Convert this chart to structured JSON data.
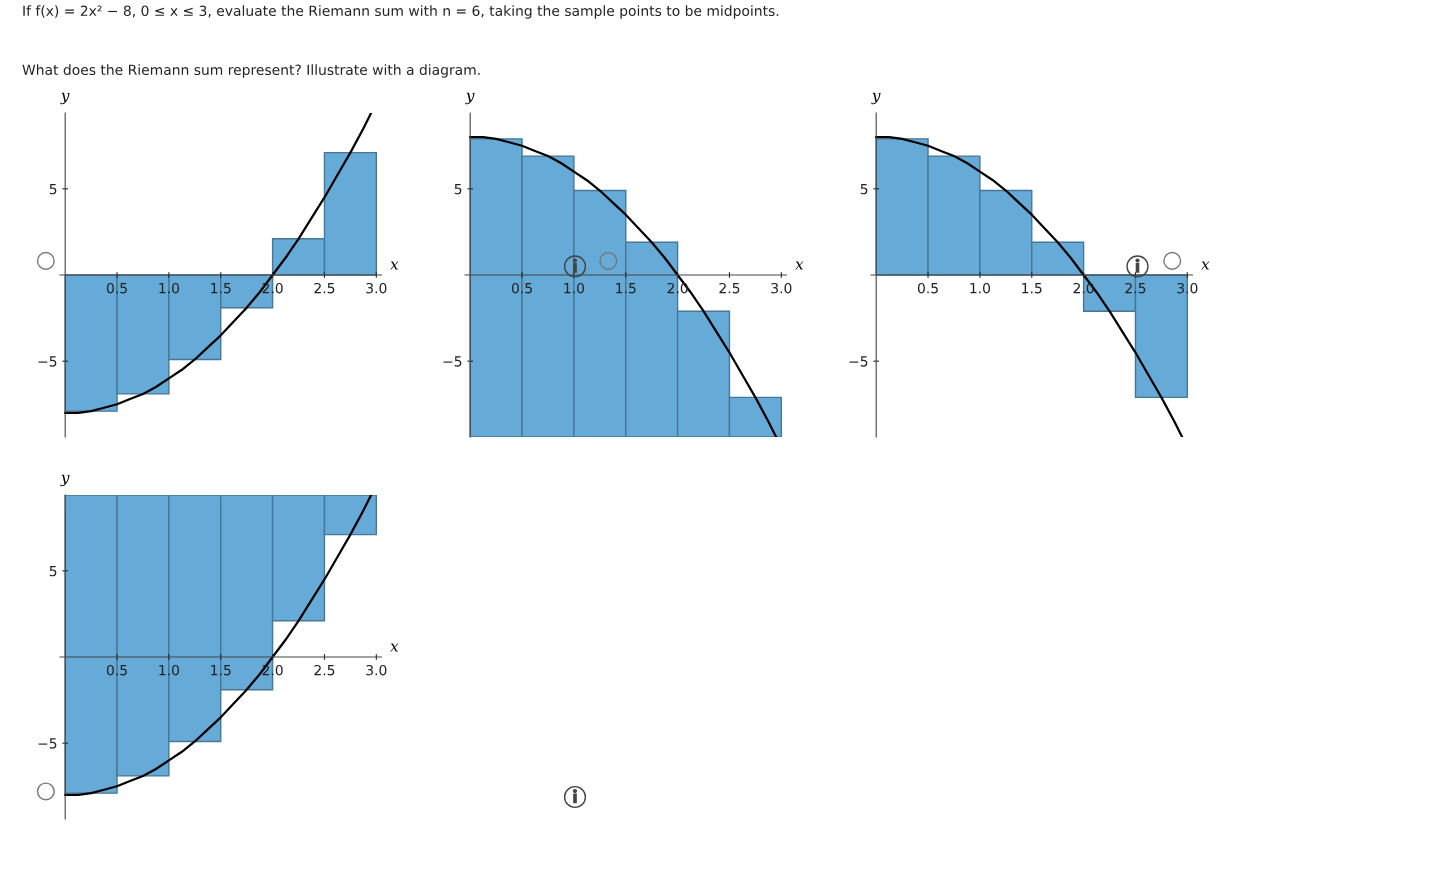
{
  "chart_data": [
    {
      "type": "bar",
      "xlabel": "x",
      "ylabel": "y",
      "xlim": [
        -0.05,
        3.05
      ],
      "ylim": [
        -9.4,
        9.4
      ],
      "xticks": [
        0.5,
        {
          "value": 1,
          "label": "1.0"
        },
        1.5,
        {
          "value": 2,
          "label": "2.0"
        },
        2.5,
        {
          "value": 3,
          "label": "3.0"
        }
      ],
      "yticks": [
        -5,
        5
      ],
      "annotations": [
        "If f(x) = 2x² − 8, 0 ≤ x ≤ 3, evaluate the Riemann sum with n = 6, taking the sample points to be midpoints.",
        "What does the Riemann sum represent? Illustrate with a diagram."
      ],
      "series": [
        {
          "type": "bar",
          "color": "#66aad7",
          "x": [
            0.25,
            0.75,
            1.25,
            1.75,
            2.25,
            2.75
          ],
          "values": [
            -7.9,
            -6.9,
            -4.9,
            -1.9,
            2.1,
            7.1
          ]
        },
        {
          "type": "line",
          "color": "#000000",
          "x": [
            0,
            0.125,
            0.25,
            0.375,
            0.5,
            0.625,
            0.75,
            0.875,
            1,
            1.125,
            1.25,
            1.375,
            1.5,
            1.625,
            1.75,
            1.875,
            2,
            2.125,
            2.25,
            2.375,
            2.5,
            2.625,
            2.75,
            2.875,
            2.95
          ],
          "values": [
            -8,
            -8,
            -7.9,
            -7.7,
            -7.5,
            -7.2,
            -6.9,
            -6.5,
            -6,
            -5.5,
            -4.9,
            -4.2,
            -3.5,
            -2.7,
            -1.9,
            -1,
            0,
            1,
            2.1,
            3.3,
            4.5,
            5.8,
            7.1,
            8.5,
            9.4
          ]
        }
      ]
    },
    {
      "type": "bar",
      "xlabel": "x",
      "ylabel": "y",
      "xlim": [
        -0.05,
        3.05
      ],
      "ylim": [
        -9.4,
        9.4
      ],
      "xticks": [
        0.5,
        {
          "value": 1,
          "label": "1.0"
        },
        1.5,
        {
          "value": 2,
          "label": "2.0"
        },
        2.5,
        {
          "value": 3,
          "label": "3.0"
        }
      ],
      "yticks": [
        -5,
        5
      ],
      "series": [
        {
          "type": "bar",
          "color": "#66aad7",
          "x": [
            0.25,
            0.75,
            1.25,
            1.75,
            2.25,
            2.75
          ],
          "base": [
            -9.4,
            -9.4,
            -9.4,
            -9.4,
            -9.4,
            -9.4
          ],
          "values": [
            17.3,
            16.3,
            14.3,
            11.3,
            7.3,
            2.3
          ]
        },
        {
          "type": "line",
          "color": "#000000",
          "x": [
            0,
            0.125,
            0.25,
            0.375,
            0.5,
            0.625,
            0.75,
            0.875,
            1,
            1.125,
            1.25,
            1.375,
            1.5,
            1.625,
            1.75,
            1.875,
            2,
            2.125,
            2.25,
            2.375,
            2.5,
            2.625,
            2.75,
            2.875,
            2.95
          ],
          "values": [
            8,
            8,
            7.9,
            7.7,
            7.5,
            7.2,
            6.9,
            6.5,
            6,
            5.5,
            4.9,
            4.2,
            3.5,
            2.7,
            1.9,
            1,
            0,
            -1,
            -2.1,
            -3.3,
            -4.5,
            -5.8,
            -7.1,
            -8.5,
            -9.4
          ]
        }
      ]
    },
    {
      "type": "bar",
      "xlabel": "x",
      "ylabel": "y",
      "xlim": [
        -0.05,
        3.05
      ],
      "ylim": [
        -9.4,
        9.4
      ],
      "xticks": [
        0.5,
        {
          "value": 1,
          "label": "1.0"
        },
        1.5,
        {
          "value": 2,
          "label": "2.0"
        },
        2.5,
        {
          "value": 3,
          "label": "3.0"
        }
      ],
      "yticks": [
        -5,
        5
      ],
      "series": [
        {
          "type": "bar",
          "color": "#66aad7",
          "x": [
            0.25,
            0.75,
            1.25,
            1.75,
            2.25,
            2.75
          ],
          "values": [
            7.9,
            6.9,
            4.9,
            1.9,
            -2.1,
            -7.1
          ]
        },
        {
          "type": "line",
          "color": "#000000",
          "x": [
            0,
            0.125,
            0.25,
            0.375,
            0.5,
            0.625,
            0.75,
            0.875,
            1,
            1.125,
            1.25,
            1.375,
            1.5,
            1.625,
            1.75,
            1.875,
            2,
            2.125,
            2.25,
            2.375,
            2.5,
            2.625,
            2.75,
            2.875,
            2.95
          ],
          "values": [
            8,
            8,
            7.9,
            7.7,
            7.5,
            7.2,
            6.9,
            6.5,
            6,
            5.5,
            4.9,
            4.2,
            3.5,
            2.7,
            1.9,
            1,
            0,
            -1,
            -2.1,
            -3.3,
            -4.5,
            -5.8,
            -7.1,
            -8.5,
            -9.4
          ]
        }
      ]
    },
    {
      "type": "bar",
      "xlabel": "x",
      "ylabel": "y",
      "xlim": [
        -0.05,
        3.05
      ],
      "ylim": [
        -9.4,
        9.4
      ],
      "xticks": [
        0.5,
        {
          "value": 1,
          "label": "1.0"
        },
        1.5,
        {
          "value": 2,
          "label": "2.0"
        },
        2.5,
        {
          "value": 3,
          "label": "3.0"
        }
      ],
      "yticks": [
        -5,
        5
      ],
      "series": [
        {
          "type": "bar",
          "color": "#66aad7",
          "x": [
            0.25,
            0.75,
            1.25,
            1.75,
            2.25,
            2.75
          ],
          "base": [
            -7.9,
            -6.9,
            -4.9,
            -1.9,
            2.1,
            7.1
          ],
          "values": [
            17.3,
            16.3,
            14.3,
            11.3,
            7.3,
            2.3
          ]
        },
        {
          "type": "line",
          "color": "#000000",
          "x": [
            0,
            0.125,
            0.25,
            0.375,
            0.5,
            0.625,
            0.75,
            0.875,
            1,
            1.125,
            1.25,
            1.375,
            1.5,
            1.625,
            1.75,
            1.875,
            2,
            2.125,
            2.25,
            2.375,
            2.5,
            2.625,
            2.75,
            2.875,
            2.95
          ],
          "values": [
            -8,
            -8,
            -7.9,
            -7.7,
            -7.5,
            -7.2,
            -6.9,
            -6.5,
            -6,
            -5.5,
            -4.9,
            -4.2,
            -3.5,
            -2.7,
            -1.9,
            -1,
            0,
            1,
            2.1,
            3.3,
            4.5,
            5.8,
            7.1,
            8.5,
            9.4
          ]
        }
      ]
    }
  ]
}
